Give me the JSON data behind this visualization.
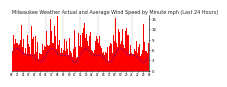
{
  "title": "Milwaukee Weather Actual and Average Wind Speed by Minute mph (Last 24 Hours)",
  "title_fontsize": 3.5,
  "background_color": "#ffffff",
  "plot_bg_color": "#ffffff",
  "bar_color": "#ff0000",
  "line_color": "#0000ff",
  "grid_color": "#b0b0b0",
  "ylim": [
    0,
    16
  ],
  "yticks": [
    0,
    3,
    6,
    9,
    12,
    15
  ],
  "n_points": 1440,
  "num_grid_lines": 8,
  "seed": 10
}
